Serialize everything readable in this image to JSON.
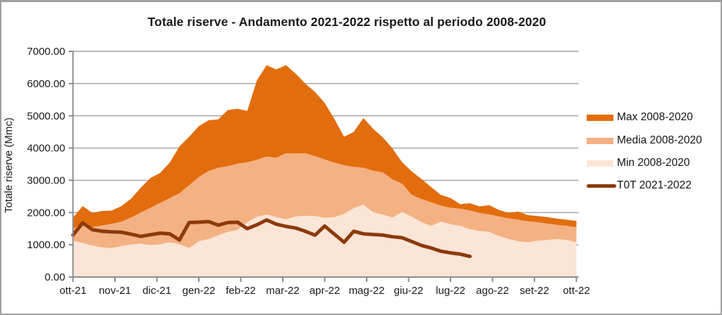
{
  "frame": {
    "background": "#ffffff",
    "border_color": "#9f9f9f"
  },
  "chart_data": {
    "type": "area",
    "title": "Totale riserve - Andamento 2021-2022 rispetto al periodo 2008-2020",
    "xlabel": "",
    "ylabel": "Totale riserve (Mmc)",
    "ylim": [
      0,
      7000
    ],
    "y_tick_step": 1000,
    "y_tick_labels": [
      "0.00",
      "1000.00",
      "2000.00",
      "3000.00",
      "4000.00",
      "5000.00",
      "6000.00",
      "7000.00"
    ],
    "x_tick_labels": [
      "ott-21",
      "nov-21",
      "dic-21",
      "gen-22",
      "feb-22",
      "mar-22",
      "apr-22",
      "mag-22",
      "giu-22",
      "lug-22",
      "ago-22",
      "set-22",
      "ott-22"
    ],
    "x_unit": "weekly points from ott-21 to ott-22",
    "grid": true,
    "legend_position": "right",
    "axis_color": "#8c8c8c",
    "gridline_color": "#a3a3a3",
    "series": [
      {
        "name": "Max 2008-2020",
        "type": "area",
        "color": "#e26d0e",
        "values": [
          1840,
          2200,
          1990,
          2050,
          2060,
          2200,
          2430,
          2770,
          3070,
          3230,
          3550,
          4050,
          4350,
          4680,
          4860,
          4890,
          5180,
          5220,
          5150,
          6100,
          6570,
          6440,
          6570,
          6310,
          6000,
          5740,
          5400,
          4900,
          4350,
          4500,
          4930,
          4600,
          4330,
          3990,
          3560,
          3270,
          3040,
          2790,
          2550,
          2450,
          2260,
          2290,
          2190,
          2230,
          2080,
          1990,
          2030,
          1920,
          1890,
          1860,
          1810,
          1780,
          1740
        ]
      },
      {
        "name": "Media 2008-2020",
        "type": "area",
        "color": "#f4b183",
        "values": [
          1500,
          1650,
          1550,
          1600,
          1650,
          1720,
          1850,
          2000,
          2150,
          2300,
          2450,
          2600,
          2850,
          3100,
          3290,
          3390,
          3440,
          3520,
          3560,
          3640,
          3740,
          3700,
          3840,
          3830,
          3840,
          3750,
          3650,
          3550,
          3470,
          3420,
          3390,
          3300,
          3250,
          3030,
          2900,
          2550,
          2420,
          2320,
          2220,
          2150,
          2120,
          2070,
          1990,
          1940,
          1880,
          1820,
          1780,
          1730,
          1700,
          1660,
          1620,
          1590,
          1550
        ]
      },
      {
        "name": "Min 2008-2020",
        "type": "area",
        "color": "#fbe5d6",
        "values": [
          1120,
          1060,
          980,
          920,
          900,
          960,
          1010,
          1040,
          990,
          1020,
          1080,
          1020,
          900,
          1110,
          1180,
          1290,
          1400,
          1460,
          1700,
          1870,
          1940,
          1860,
          1790,
          1880,
          1900,
          1890,
          1840,
          1860,
          1960,
          2140,
          2240,
          2010,
          1940,
          1850,
          2020,
          1870,
          1700,
          1590,
          1720,
          1640,
          1590,
          1480,
          1430,
          1400,
          1270,
          1180,
          1110,
          1080,
          1130,
          1150,
          1180,
          1150,
          1080
        ]
      },
      {
        "name": "T0T 2021-2022",
        "type": "line",
        "color": "#8c3a0b",
        "values": [
          1300,
          1680,
          1470,
          1420,
          1400,
          1390,
          1330,
          1260,
          1310,
          1360,
          1340,
          1150,
          1690,
          1700,
          1720,
          1610,
          1690,
          1700,
          1500,
          1620,
          1770,
          1640,
          1570,
          1520,
          1420,
          1300,
          1580,
          1330,
          1080,
          1420,
          1340,
          1320,
          1300,
          1250,
          1220,
          1100,
          980,
          900,
          800,
          750,
          710,
          640,
          null,
          null,
          null,
          null,
          null,
          null,
          null,
          null,
          null,
          null,
          null
        ]
      }
    ]
  }
}
